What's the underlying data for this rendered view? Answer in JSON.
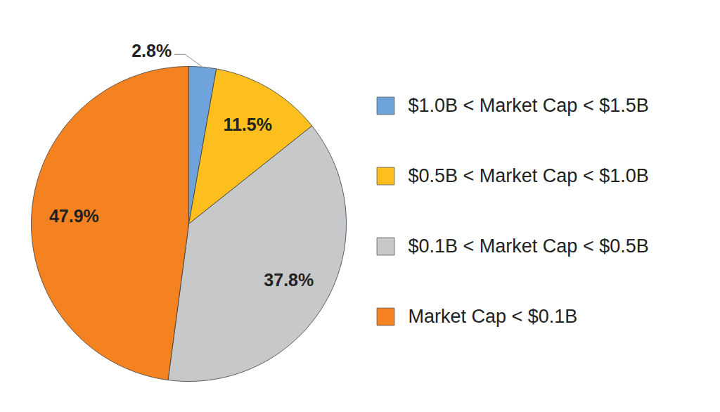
{
  "chart_data": {
    "type": "pie",
    "categories": [
      "$1.0B < Market Cap < $1.5B",
      "$0.5B < Market Cap < $1.0B",
      "$0.1B < Market Cap < $0.5B",
      "Market Cap < $0.1B"
    ],
    "values": [
      2.8,
      11.5,
      37.8,
      47.9
    ],
    "value_labels": [
      "2.8%",
      "11.5%",
      "37.8%",
      "47.9%"
    ],
    "colors": [
      "#6fa3dc",
      "#fcbf1e",
      "#c7c8ca",
      "#f58220"
    ],
    "data_labels": true,
    "legend": "right"
  }
}
